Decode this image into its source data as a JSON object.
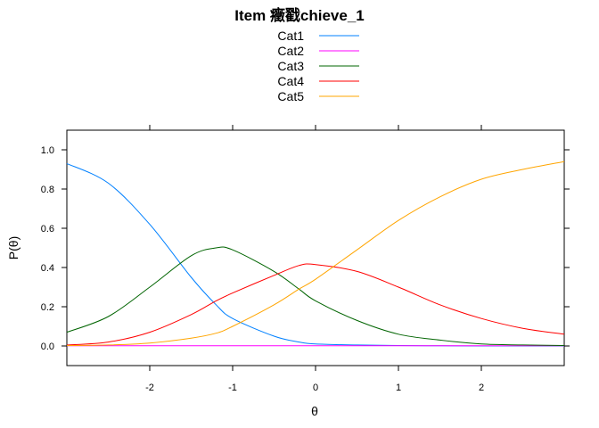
{
  "chart_data": {
    "type": "line",
    "title": "Item 癥戳chieve_1",
    "xlabel": "θ",
    "ylabel": "P(θ)",
    "xlim": [
      -3,
      3
    ],
    "ylim": [
      -0.1,
      1.1
    ],
    "grid": false,
    "legend_position": "top",
    "x_ticks": [
      {
        "value": -2,
        "label": "-2"
      },
      {
        "value": -1,
        "label": "-1"
      },
      {
        "value": 0,
        "label": "0"
      },
      {
        "value": 1,
        "label": "1"
      },
      {
        "value": 2,
        "label": "2"
      }
    ],
    "y_ticks": [
      {
        "value": 0.0,
        "label": "0.0"
      },
      {
        "value": 0.2,
        "label": "0.2"
      },
      {
        "value": 0.4,
        "label": "0.4"
      },
      {
        "value": 0.6,
        "label": "0.6"
      },
      {
        "value": 0.8,
        "label": "0.8"
      },
      {
        "value": 1.0,
        "label": "1.0"
      }
    ],
    "x": [
      -3.0,
      -2.5,
      -2.0,
      -1.5,
      -1.2,
      -1.0,
      -0.5,
      -0.2,
      0.0,
      0.5,
      1.0,
      1.5,
      2.0,
      2.5,
      3.0
    ],
    "series": [
      {
        "name": "Cat1",
        "color": "#0080ff",
        "values": [
          0.93,
          0.83,
          0.62,
          0.35,
          0.21,
          0.14,
          0.05,
          0.02,
          0.01,
          0.005,
          0.002,
          0.001,
          0.0,
          0.0,
          0.0
        ]
      },
      {
        "name": "Cat2",
        "color": "#ff00ff",
        "values": [
          0.001,
          0.001,
          0.001,
          0.001,
          0.001,
          0.001,
          0.001,
          0.001,
          0.001,
          0.001,
          0.001,
          0.001,
          0.001,
          0.001,
          0.001
        ]
      },
      {
        "name": "Cat3",
        "color": "#006400",
        "values": [
          0.07,
          0.15,
          0.3,
          0.46,
          0.5,
          0.49,
          0.38,
          0.29,
          0.23,
          0.13,
          0.06,
          0.03,
          0.01,
          0.005,
          0.002
        ]
      },
      {
        "name": "Cat4",
        "color": "#ff0000",
        "values": [
          0.005,
          0.02,
          0.07,
          0.16,
          0.23,
          0.27,
          0.36,
          0.41,
          0.415,
          0.38,
          0.3,
          0.21,
          0.14,
          0.09,
          0.06
        ]
      },
      {
        "name": "Cat5",
        "color": "#ffa500",
        "values": [
          0.002,
          0.005,
          0.015,
          0.04,
          0.065,
          0.1,
          0.21,
          0.29,
          0.34,
          0.49,
          0.64,
          0.76,
          0.85,
          0.9,
          0.94
        ]
      }
    ]
  }
}
